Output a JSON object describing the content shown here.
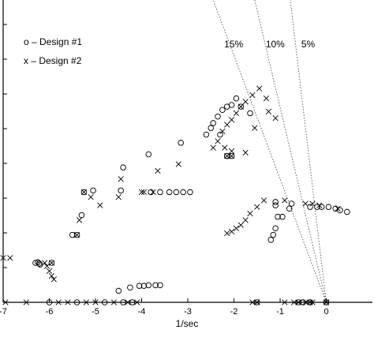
{
  "chart_data": {
    "type": "scatter",
    "title": "",
    "xlabel": "1/sec",
    "ylabel": "",
    "xlim": [
      -7,
      1
    ],
    "ylim": [
      0,
      9
    ],
    "xticks": [
      "-7",
      "-6",
      "-5",
      "-4",
      "-3",
      "-2",
      "-1",
      "0"
    ],
    "grid": false,
    "legend": {
      "position": "top-left",
      "entries": [
        "o – Design #1",
        "x – Design #2"
      ]
    },
    "damping_lines": [
      {
        "label": "15%",
        "end": [
          -2.45,
          8.4
        ]
      },
      {
        "label": "10%",
        "end": [
          -1.55,
          8.4
        ]
      },
      {
        "label": "5%",
        "end": [
          -0.78,
          8.4
        ]
      }
    ],
    "series": [
      {
        "name": "o – Design #1",
        "marker": "circle",
        "points": [
          [
            -6.3,
            1.2
          ],
          [
            -6.25,
            1.22
          ],
          [
            -6.22,
            1.18
          ],
          [
            -6.2,
            1.15
          ],
          [
            -5.5,
            2.05
          ],
          [
            -5.3,
            2.65
          ],
          [
            -5.05,
            3.4
          ],
          [
            -4.45,
            3.4
          ],
          [
            -4.4,
            4.1
          ],
          [
            -3.85,
            4.5
          ],
          [
            -3.15,
            4.85
          ],
          [
            -2.6,
            5.1
          ],
          [
            -2.5,
            5.3
          ],
          [
            -2.45,
            5.45
          ],
          [
            -2.35,
            5.65
          ],
          [
            -2.25,
            5.85
          ],
          [
            -2.15,
            5.95
          ],
          [
            -2.05,
            6.0
          ],
          [
            -1.95,
            6.2
          ],
          [
            -1.85,
            5.95
          ],
          [
            -1.65,
            5.75
          ],
          [
            -2.3,
            5.1
          ],
          [
            -2.15,
            4.45
          ],
          [
            -3.8,
            3.35
          ],
          [
            -3.6,
            3.35
          ],
          [
            -3.4,
            3.35
          ],
          [
            -3.25,
            3.35
          ],
          [
            -3.1,
            3.35
          ],
          [
            -2.95,
            3.35
          ],
          [
            -1.1,
            3.05
          ],
          [
            -1.1,
            2.95
          ],
          [
            -1.05,
            2.6
          ],
          [
            -1.1,
            2.25
          ],
          [
            -1.15,
            2.05
          ],
          [
            -1.2,
            1.9
          ],
          [
            -0.95,
            2.6
          ],
          [
            -0.8,
            2.85
          ],
          [
            -0.75,
            3.0
          ],
          [
            -0.35,
            2.9
          ],
          [
            -0.2,
            2.9
          ],
          [
            -0.1,
            2.9
          ],
          [
            0.05,
            2.9
          ],
          [
            0.2,
            2.85
          ],
          [
            0.3,
            2.8
          ],
          [
            0.45,
            2.75
          ],
          [
            -4.5,
            0.35
          ],
          [
            -4.25,
            0.45
          ],
          [
            -4.05,
            0.5
          ],
          [
            -3.95,
            0.5
          ],
          [
            -3.85,
            0.52
          ],
          [
            -3.7,
            0.52
          ],
          [
            -3.6,
            0.52
          ],
          [
            -6.0,
            0
          ],
          [
            -5.4,
            0
          ],
          [
            -4.8,
            0
          ],
          [
            -4.4,
            0
          ],
          [
            -4.2,
            0
          ],
          [
            -0.5,
            0
          ],
          [
            -0.35,
            0
          ],
          [
            0,
            0
          ]
        ]
      },
      {
        "name": "x – Design #2",
        "marker": "x",
        "points": [
          [
            -7.0,
            1.35
          ],
          [
            -6.85,
            1.35
          ],
          [
            -6.1,
            1.2
          ],
          [
            -6.05,
            1.1
          ],
          [
            -6.0,
            0.95
          ],
          [
            -5.95,
            0.8
          ],
          [
            -5.9,
            0.7
          ],
          [
            -5.35,
            2.5
          ],
          [
            -5.1,
            3.2
          ],
          [
            -4.9,
            2.95
          ],
          [
            -4.5,
            3.2
          ],
          [
            -4.45,
            3.75
          ],
          [
            -4.0,
            3.35
          ],
          [
            -3.95,
            3.35
          ],
          [
            -3.75,
            3.35
          ],
          [
            -3.65,
            4.0
          ],
          [
            -3.2,
            4.2
          ],
          [
            -2.45,
            4.7
          ],
          [
            -2.35,
            4.9
          ],
          [
            -2.25,
            5.2
          ],
          [
            -2.15,
            5.4
          ],
          [
            -2.05,
            5.55
          ],
          [
            -1.95,
            5.75
          ],
          [
            -1.85,
            5.95
          ],
          [
            -1.75,
            6.1
          ],
          [
            -1.6,
            6.3
          ],
          [
            -1.45,
            6.5
          ],
          [
            -1.3,
            6.2
          ],
          [
            -1.25,
            5.8
          ],
          [
            -1.55,
            5.3
          ],
          [
            -1.1,
            5.6
          ],
          [
            -2.2,
            4.7
          ],
          [
            -2.05,
            4.6
          ],
          [
            -1.75,
            4.55
          ],
          [
            -2.15,
            2.1
          ],
          [
            -2.05,
            2.15
          ],
          [
            -1.95,
            2.25
          ],
          [
            -1.85,
            2.35
          ],
          [
            -1.75,
            2.5
          ],
          [
            -1.65,
            2.7
          ],
          [
            -1.5,
            2.9
          ],
          [
            -1.35,
            3.1
          ],
          [
            -0.9,
            3.1
          ],
          [
            -0.45,
            3.0
          ],
          [
            -0.3,
            3.0
          ],
          [
            -0.15,
            2.95
          ],
          [
            0.25,
            2.85
          ],
          [
            -6.95,
            0
          ],
          [
            -6.5,
            0
          ],
          [
            -5.8,
            0
          ],
          [
            -5.6,
            0
          ],
          [
            -5.2,
            0
          ],
          [
            -5.0,
            0
          ],
          [
            -4.6,
            0
          ],
          [
            -4.3,
            0
          ],
          [
            -4.1,
            0
          ],
          [
            -1.6,
            0
          ],
          [
            -1.5,
            0
          ],
          [
            -0.9,
            0
          ],
          [
            -0.7,
            0
          ],
          [
            -0.6,
            0
          ],
          [
            -0.45,
            0
          ],
          [
            -0.3,
            0
          ],
          [
            0,
            0
          ]
        ]
      }
    ],
    "overlap_points": [
      [
        -5.95,
        1.2
      ],
      [
        -5.4,
        2.05
      ],
      [
        -5.25,
        3.35
      ],
      [
        -2.15,
        4.45
      ],
      [
        -2.05,
        4.45
      ],
      [
        -1.5,
        0
      ],
      [
        -0.6,
        0
      ],
      [
        -0.35,
        0
      ],
      [
        0,
        0
      ]
    ]
  }
}
